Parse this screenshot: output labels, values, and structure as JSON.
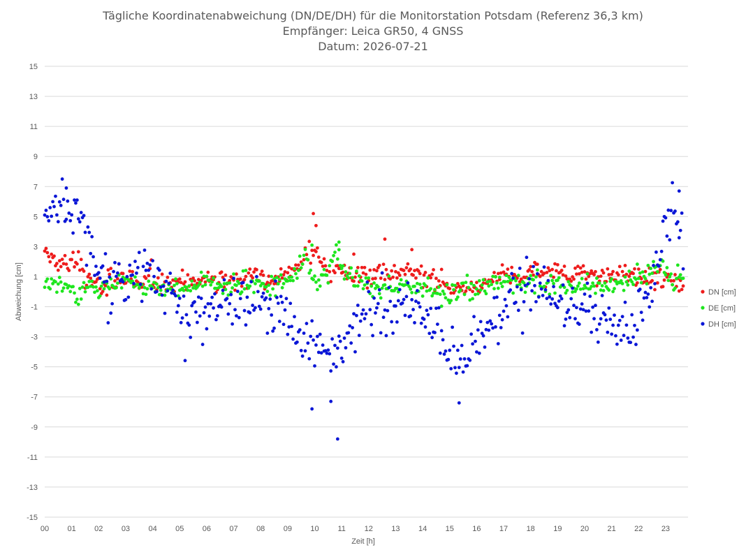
{
  "chart_data": {
    "type": "scatter",
    "title": [
      "Tägliche Koordinatenabweichung (DN/DE/DH) für die Monitorstation Potsdam (Referenz 36,3 km)",
      "Empfänger: Leica GR50, 4 GNSS",
      "Datum: 2026-07-21"
    ],
    "xlabel": "Zeit [h]",
    "ylabel": "Abweichung [cm]",
    "xlim": [
      0,
      24
    ],
    "ylim": [
      -15,
      15
    ],
    "x_ticks": [
      "00",
      "01",
      "02",
      "03",
      "04",
      "05",
      "06",
      "07",
      "08",
      "09",
      "10",
      "11",
      "12",
      "13",
      "14",
      "15",
      "16",
      "17",
      "18",
      "19",
      "20",
      "21",
      "22",
      "23"
    ],
    "y_ticks": [
      "15",
      "13",
      "11",
      "9",
      "7",
      "5",
      "3",
      "1",
      "-1",
      "-3",
      "-5",
      "-7",
      "-9",
      "-11",
      "-13",
      "-15"
    ],
    "grid": true,
    "legend": "right",
    "sampling": {
      "x_start": 0,
      "x_end": 23.65,
      "step": 0.05
    },
    "series": [
      {
        "name": "DN [cm]",
        "color": "#ee1c1c",
        "profile": [
          [
            0,
            2.2
          ],
          [
            0.8,
            2.0
          ],
          [
            1.3,
            1.6
          ],
          [
            1.5,
            0.6
          ],
          [
            3,
            0.8
          ],
          [
            5,
            0.6
          ],
          [
            7,
            0.9
          ],
          [
            9,
            0.9
          ],
          [
            9.6,
            2.2
          ],
          [
            10.0,
            2.8
          ],
          [
            10.5,
            1.3
          ],
          [
            11.2,
            1.2
          ],
          [
            12.5,
            1.2
          ],
          [
            13.5,
            1.4
          ],
          [
            15,
            0.3
          ],
          [
            16,
            0.4
          ],
          [
            17,
            1.3
          ],
          [
            19,
            1.4
          ],
          [
            21,
            1.1
          ],
          [
            23,
            1.0
          ],
          [
            23.65,
            0.5
          ]
        ],
        "spikes": [
          [
            9.95,
            5.2
          ],
          [
            10.05,
            4.4
          ],
          [
            12.6,
            3.5
          ],
          [
            13.6,
            2.8
          ],
          [
            11.45,
            2.5
          ]
        ]
      },
      {
        "name": "DE [cm]",
        "color": "#1ee61e",
        "profile": [
          [
            0,
            0.8
          ],
          [
            0.6,
            0.5
          ],
          [
            1.3,
            -0.2
          ],
          [
            2,
            0.2
          ],
          [
            3,
            0.7
          ],
          [
            4,
            0.2
          ],
          [
            5,
            0.3
          ],
          [
            6,
            0.5
          ],
          [
            8,
            0.5
          ],
          [
            9,
            0.6
          ],
          [
            9.7,
            2.2
          ],
          [
            10.1,
            0.5
          ],
          [
            10.8,
            2.5
          ],
          [
            11.2,
            1.0
          ],
          [
            12,
            0.3
          ],
          [
            14,
            0.3
          ],
          [
            15,
            -0.4
          ],
          [
            16,
            0.4
          ],
          [
            17,
            0.6
          ],
          [
            19,
            0.4
          ],
          [
            21,
            0.2
          ],
          [
            22,
            1.0
          ],
          [
            22.8,
            1.8
          ],
          [
            23.3,
            0.5
          ],
          [
            23.65,
            0.6
          ]
        ],
        "spikes": [
          [
            10.9,
            3.3
          ],
          [
            9.9,
            3.1
          ]
        ]
      },
      {
        "name": "DH [cm]",
        "color": "#0a16d6",
        "profile": [
          [
            0,
            5.2
          ],
          [
            0.5,
            6.0
          ],
          [
            1.0,
            5.2
          ],
          [
            1.5,
            4.5
          ],
          [
            1.9,
            1.8
          ],
          [
            2.3,
            0.5
          ],
          [
            3,
            0.6
          ],
          [
            4,
            1.3
          ],
          [
            4.6,
            -0.5
          ],
          [
            5.2,
            -1.8
          ],
          [
            6,
            -1.2
          ],
          [
            7,
            -0.5
          ],
          [
            8,
            -1.0
          ],
          [
            9,
            -1.5
          ],
          [
            9.5,
            -3.5
          ],
          [
            10,
            -3.5
          ],
          [
            10.6,
            -4.5
          ],
          [
            11,
            -3.8
          ],
          [
            11.5,
            -1.5
          ],
          [
            12,
            -1.2
          ],
          [
            13,
            -1.0
          ],
          [
            13.5,
            -1.5
          ],
          [
            14,
            -1.5
          ],
          [
            14.6,
            -2.5
          ],
          [
            15.2,
            -4.5
          ],
          [
            15.6,
            -4.0
          ],
          [
            16.2,
            -2.5
          ],
          [
            17,
            -1.5
          ],
          [
            17.6,
            0.3
          ],
          [
            18.5,
            0.2
          ],
          [
            19,
            -1.2
          ],
          [
            20,
            -1.0
          ],
          [
            21,
            -2.0
          ],
          [
            21.5,
            -2.5
          ],
          [
            22,
            -1.8
          ],
          [
            22.5,
            0.2
          ],
          [
            23,
            4.5
          ],
          [
            23.4,
            5.8
          ],
          [
            23.65,
            3.0
          ]
        ],
        "spikes": [
          [
            10.85,
            -9.8
          ],
          [
            9.9,
            -7.8
          ],
          [
            15.35,
            -7.4
          ],
          [
            10.6,
            -7.3
          ],
          [
            0.8,
            6.9
          ],
          [
            23.5,
            6.7
          ]
        ]
      }
    ]
  }
}
